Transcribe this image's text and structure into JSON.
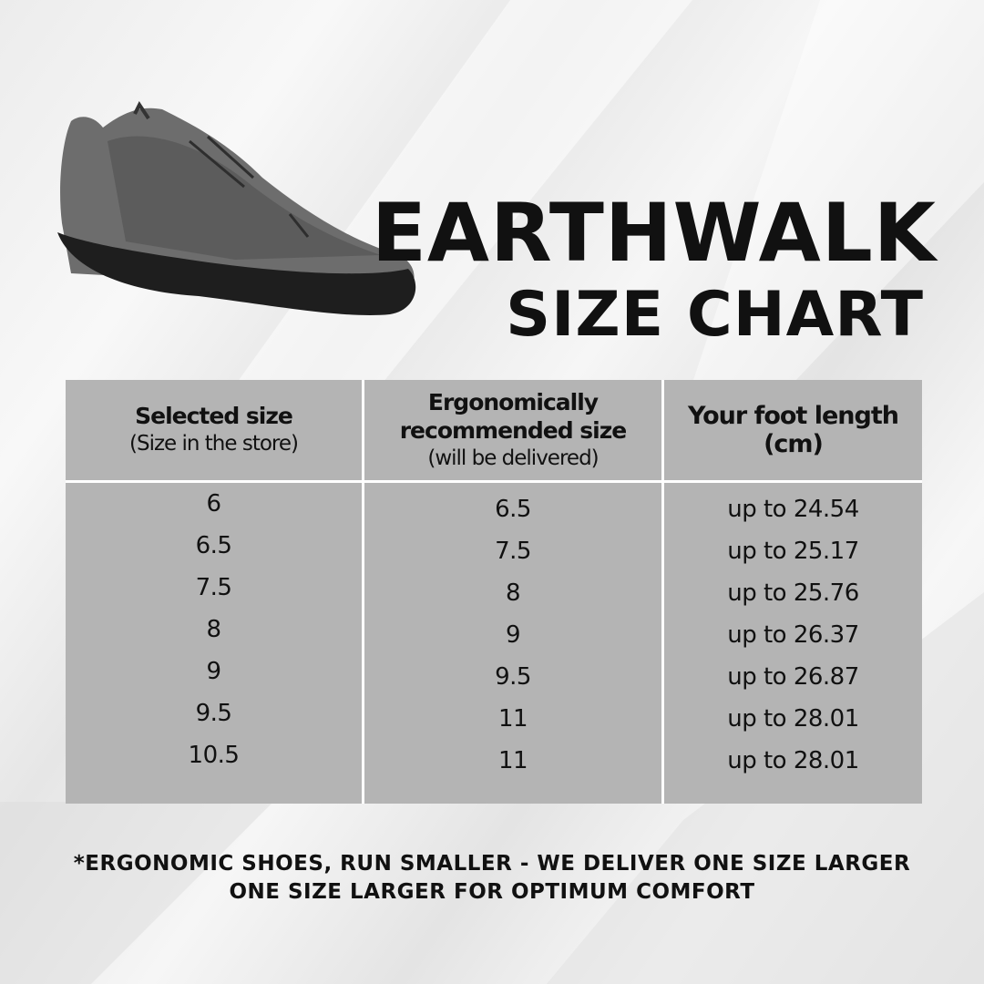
{
  "title": {
    "line1": "EARTHWALK",
    "line2": "SIZE CHART"
  },
  "image": {
    "alt": "grey barefoot shoe"
  },
  "table": {
    "headers": [
      {
        "main": "Selected size",
        "sub": "(Size in the store)"
      },
      {
        "main": "Ergonomically recommended size",
        "sub": "(will be delivered)"
      },
      {
        "main": "Your foot length (cm)",
        "sub": ""
      }
    ],
    "selected": [
      "6",
      "6.5",
      "7.5",
      "8",
      "9",
      "9.5",
      "10.5"
    ],
    "recommended": [
      "6.5",
      "7.5",
      "8",
      "9",
      "9.5",
      "11",
      "11"
    ],
    "foot_length": [
      "up to 24.54",
      "up to 25.17",
      "up to 25.76",
      "up to 26.37",
      "up to 26.87",
      "up to 28.01",
      "up to 28.01"
    ]
  },
  "note": {
    "line1": "*ERGONOMIC SHOES, RUN SMALLER - WE DELIVER ONE SIZE LARGER",
    "line2": "ONE SIZE LARGER FOR OPTIMUM COMFORT"
  },
  "colors": {
    "table": "#b4b4b4",
    "text": "#111111",
    "shoe": "#6b6b6b",
    "sole": "#1e1e1e"
  }
}
